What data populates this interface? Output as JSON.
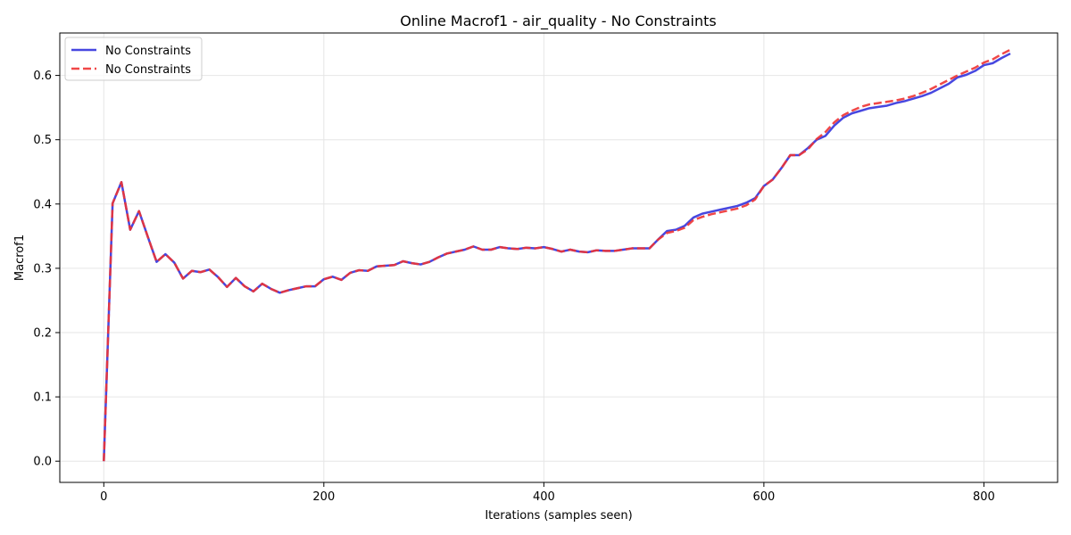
{
  "chart_data": {
    "type": "line",
    "title": "Online Macrof1 - air_quality - No Constraints",
    "xlabel": "Iterations (samples seen)",
    "ylabel": "Macrof1",
    "xlim": [
      -40,
      867
    ],
    "ylim": [
      -0.033,
      0.666
    ],
    "xticks": [
      0,
      200,
      400,
      600,
      800
    ],
    "yticks": [
      0.0,
      0.1,
      0.2,
      0.3,
      0.4,
      0.5,
      0.6
    ],
    "xtick_labels": [
      "0",
      "200",
      "400",
      "600",
      "800"
    ],
    "ytick_labels": [
      "0.0",
      "0.1",
      "0.2",
      "0.3",
      "0.4",
      "0.5",
      "0.6"
    ],
    "grid": true,
    "legend_position": "top-left",
    "series": [
      {
        "name": "No Constraints",
        "color": "#3333dd",
        "style": "solid",
        "x": [
          0,
          8,
          16,
          24,
          32,
          40,
          48,
          56,
          64,
          72,
          80,
          88,
          96,
          104,
          112,
          120,
          128,
          136,
          144,
          152,
          160,
          168,
          176,
          184,
          192,
          200,
          208,
          216,
          224,
          232,
          240,
          248,
          256,
          264,
          272,
          280,
          288,
          296,
          304,
          312,
          320,
          328,
          336,
          344,
          352,
          360,
          368,
          376,
          384,
          392,
          400,
          408,
          416,
          424,
          432,
          440,
          448,
          456,
          464,
          472,
          480,
          488,
          496,
          504,
          512,
          520,
          528,
          536,
          544,
          552,
          560,
          568,
          576,
          584,
          592,
          600,
          608,
          616,
          624,
          632,
          640,
          648,
          656,
          664,
          672,
          680,
          688,
          696,
          704,
          712,
          720,
          728,
          736,
          744,
          752,
          760,
          768,
          776,
          784,
          792,
          800,
          808,
          816,
          824
        ],
        "values": [
          0.0,
          0.401,
          0.434,
          0.36,
          0.389,
          0.349,
          0.31,
          0.322,
          0.309,
          0.284,
          0.296,
          0.294,
          0.298,
          0.286,
          0.271,
          0.285,
          0.272,
          0.264,
          0.276,
          0.268,
          0.262,
          0.266,
          0.269,
          0.272,
          0.272,
          0.283,
          0.287,
          0.282,
          0.293,
          0.297,
          0.296,
          0.303,
          0.304,
          0.305,
          0.311,
          0.308,
          0.306,
          0.31,
          0.317,
          0.323,
          0.326,
          0.329,
          0.334,
          0.329,
          0.329,
          0.333,
          0.331,
          0.33,
          0.332,
          0.331,
          0.333,
          0.33,
          0.326,
          0.329,
          0.326,
          0.325,
          0.328,
          0.327,
          0.327,
          0.329,
          0.331,
          0.331,
          0.331,
          0.345,
          0.358,
          0.36,
          0.366,
          0.379,
          0.385,
          0.388,
          0.391,
          0.394,
          0.397,
          0.402,
          0.409,
          0.428,
          0.438,
          0.456,
          0.476,
          0.476,
          0.487,
          0.5,
          0.506,
          0.522,
          0.534,
          0.541,
          0.545,
          0.549,
          0.551,
          0.553,
          0.557,
          0.56,
          0.564,
          0.568,
          0.573,
          0.58,
          0.587,
          0.597,
          0.601,
          0.607,
          0.616,
          0.619,
          0.627,
          0.634
        ]
      },
      {
        "name": "No Constraints",
        "color": "#ee3333",
        "style": "dashed",
        "x": [
          0,
          8,
          16,
          24,
          32,
          40,
          48,
          56,
          64,
          72,
          80,
          88,
          96,
          104,
          112,
          120,
          128,
          136,
          144,
          152,
          160,
          168,
          176,
          184,
          192,
          200,
          208,
          216,
          224,
          232,
          240,
          248,
          256,
          264,
          272,
          280,
          288,
          296,
          304,
          312,
          320,
          328,
          336,
          344,
          352,
          360,
          368,
          376,
          384,
          392,
          400,
          408,
          416,
          424,
          432,
          440,
          448,
          456,
          464,
          472,
          480,
          488,
          496,
          504,
          512,
          520,
          528,
          536,
          544,
          552,
          560,
          568,
          576,
          584,
          592,
          600,
          608,
          616,
          624,
          632,
          640,
          648,
          656,
          664,
          672,
          680,
          688,
          696,
          704,
          712,
          720,
          728,
          736,
          744,
          752,
          760,
          768,
          776,
          784,
          792,
          800,
          808,
          816,
          824
        ],
        "values": [
          0.0,
          0.401,
          0.434,
          0.36,
          0.389,
          0.349,
          0.31,
          0.322,
          0.309,
          0.284,
          0.296,
          0.294,
          0.298,
          0.286,
          0.271,
          0.285,
          0.272,
          0.264,
          0.276,
          0.268,
          0.262,
          0.266,
          0.269,
          0.272,
          0.272,
          0.283,
          0.287,
          0.282,
          0.293,
          0.297,
          0.296,
          0.303,
          0.304,
          0.305,
          0.311,
          0.308,
          0.306,
          0.31,
          0.317,
          0.323,
          0.326,
          0.329,
          0.334,
          0.329,
          0.329,
          0.333,
          0.331,
          0.33,
          0.332,
          0.331,
          0.333,
          0.33,
          0.326,
          0.329,
          0.326,
          0.325,
          0.328,
          0.327,
          0.327,
          0.329,
          0.331,
          0.331,
          0.331,
          0.345,
          0.355,
          0.358,
          0.363,
          0.375,
          0.38,
          0.384,
          0.387,
          0.39,
          0.393,
          0.398,
          0.407,
          0.428,
          0.438,
          0.456,
          0.476,
          0.476,
          0.485,
          0.501,
          0.512,
          0.527,
          0.538,
          0.545,
          0.551,
          0.555,
          0.557,
          0.559,
          0.561,
          0.564,
          0.568,
          0.573,
          0.579,
          0.586,
          0.593,
          0.6,
          0.606,
          0.612,
          0.62,
          0.625,
          0.633,
          0.64
        ]
      }
    ]
  }
}
